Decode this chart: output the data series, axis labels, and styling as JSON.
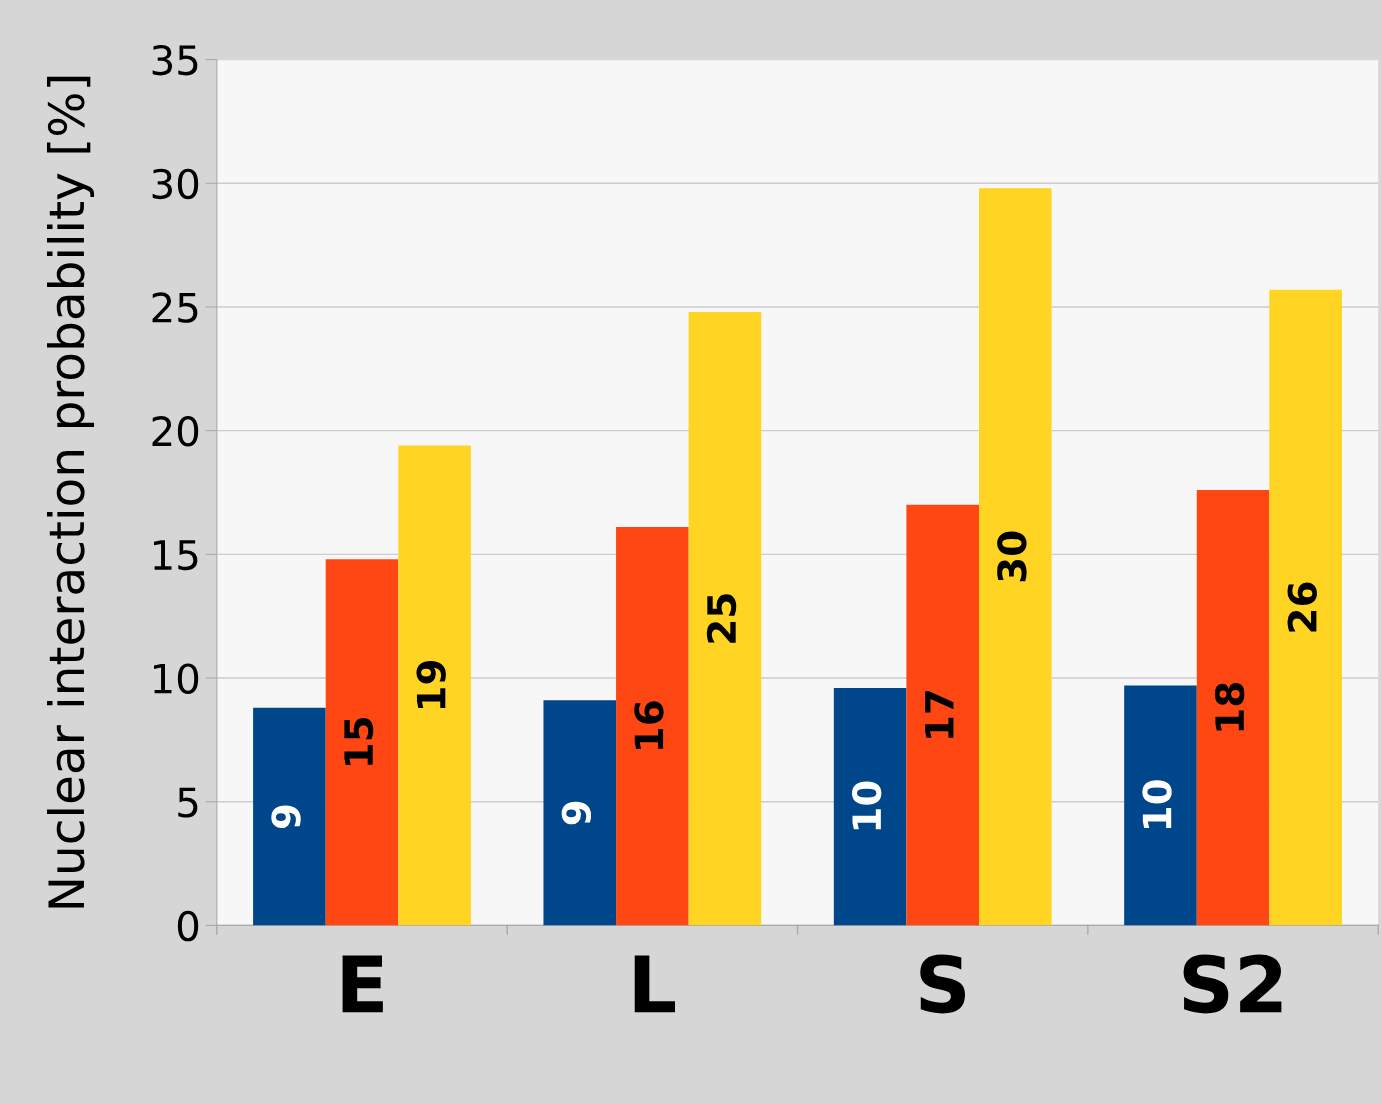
{
  "chart_data": {
    "type": "bar",
    "ylabel": "Nuclear interaction probability [%]",
    "categories": [
      "E",
      "L",
      "S",
      "S2"
    ],
    "series": [
      {
        "color": "#00468b",
        "values": [
          8.8,
          9.1,
          9.6,
          9.7
        ],
        "value_labels": [
          "9",
          "9",
          "10",
          "10"
        ]
      },
      {
        "color": "#ff4713",
        "values": [
          14.8,
          16.1,
          17.0,
          17.6
        ],
        "value_labels": [
          "15",
          "16",
          "17",
          "18"
        ]
      },
      {
        "color": "#ffd423",
        "values": [
          19.4,
          24.8,
          29.8,
          25.7
        ],
        "value_labels": [
          "19",
          "25",
          "30",
          "26"
        ]
      }
    ],
    "ylim": [
      0,
      35
    ],
    "yticks": [
      0,
      5,
      10,
      15,
      20,
      25,
      30,
      35
    ],
    "grid": "y",
    "legend": false
  }
}
